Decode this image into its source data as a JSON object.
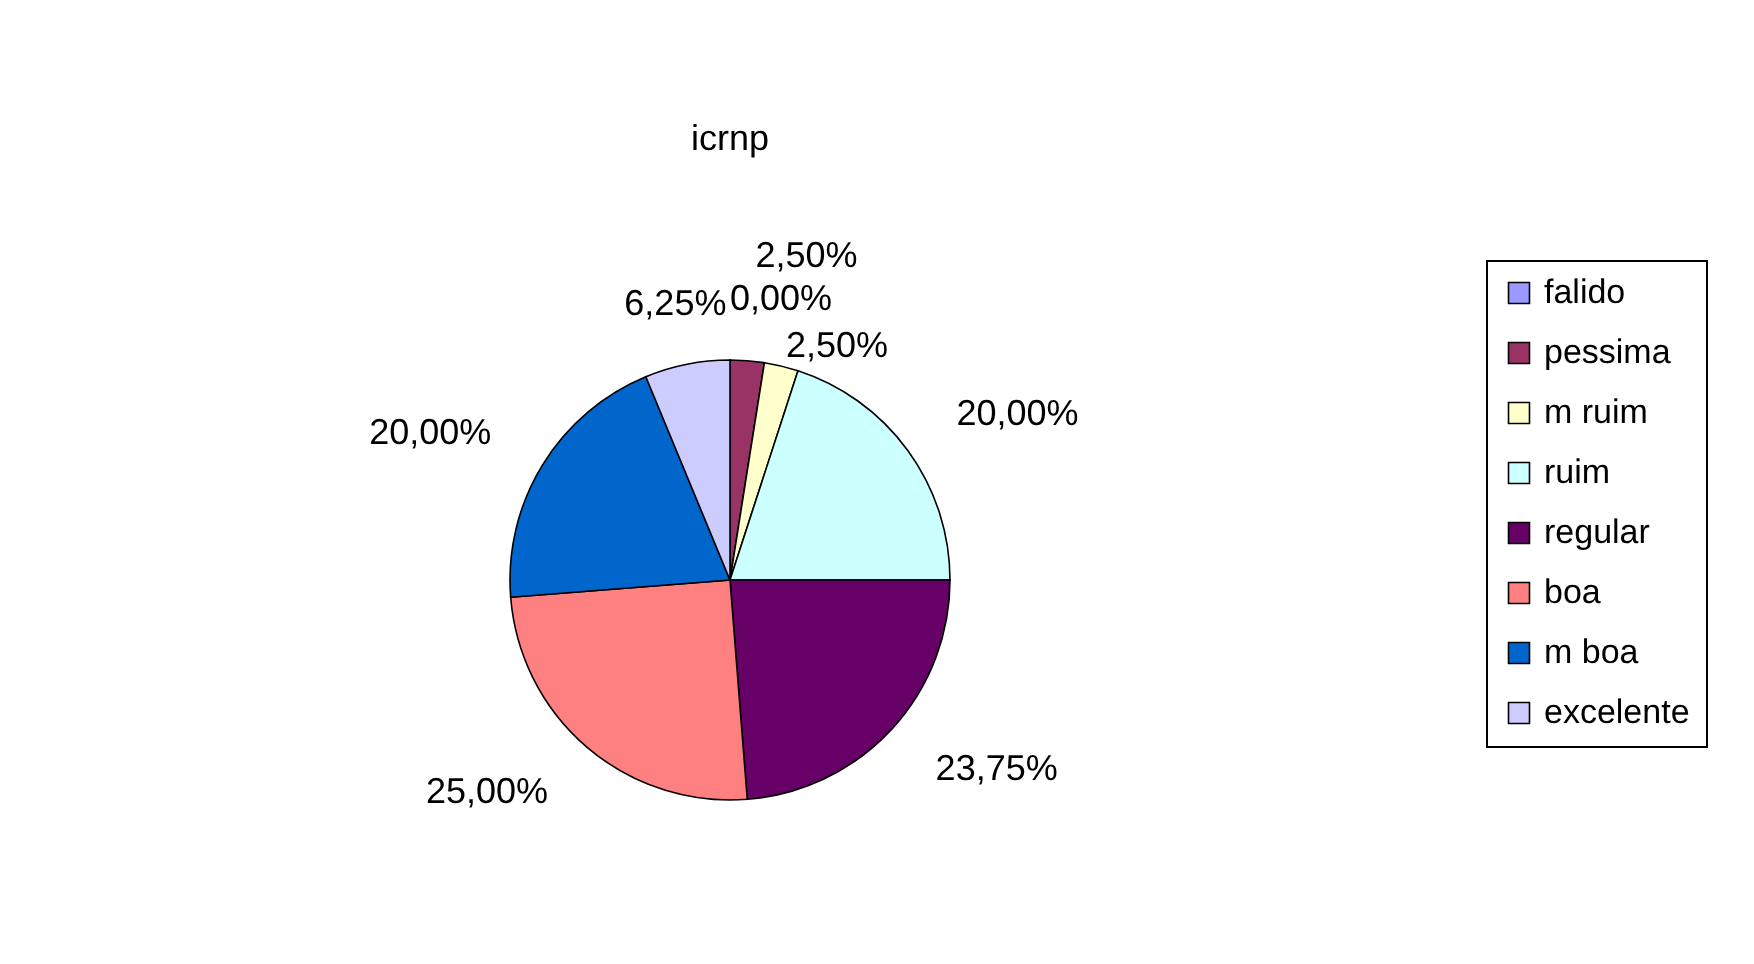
{
  "chart_data": {
    "type": "pie",
    "title": "icrnp",
    "categories": [
      "falido",
      "pessima",
      "m ruim",
      "ruim",
      "regular",
      "boa",
      "m boa",
      "excelente"
    ],
    "values": [
      0,
      2.5,
      2.5,
      20,
      23.75,
      25,
      20,
      6.25
    ],
    "value_labels": [
      "0,00%",
      "2,50%",
      "2,50%",
      "20,00%",
      "23,75%",
      "25,00%",
      "20,00%",
      "6,25%"
    ],
    "colors": [
      "#9999ff",
      "#993366",
      "#ffffcc",
      "#ccffff",
      "#660066",
      "#ff8080",
      "#0066cc",
      "#ccccff"
    ],
    "legend": "right"
  }
}
